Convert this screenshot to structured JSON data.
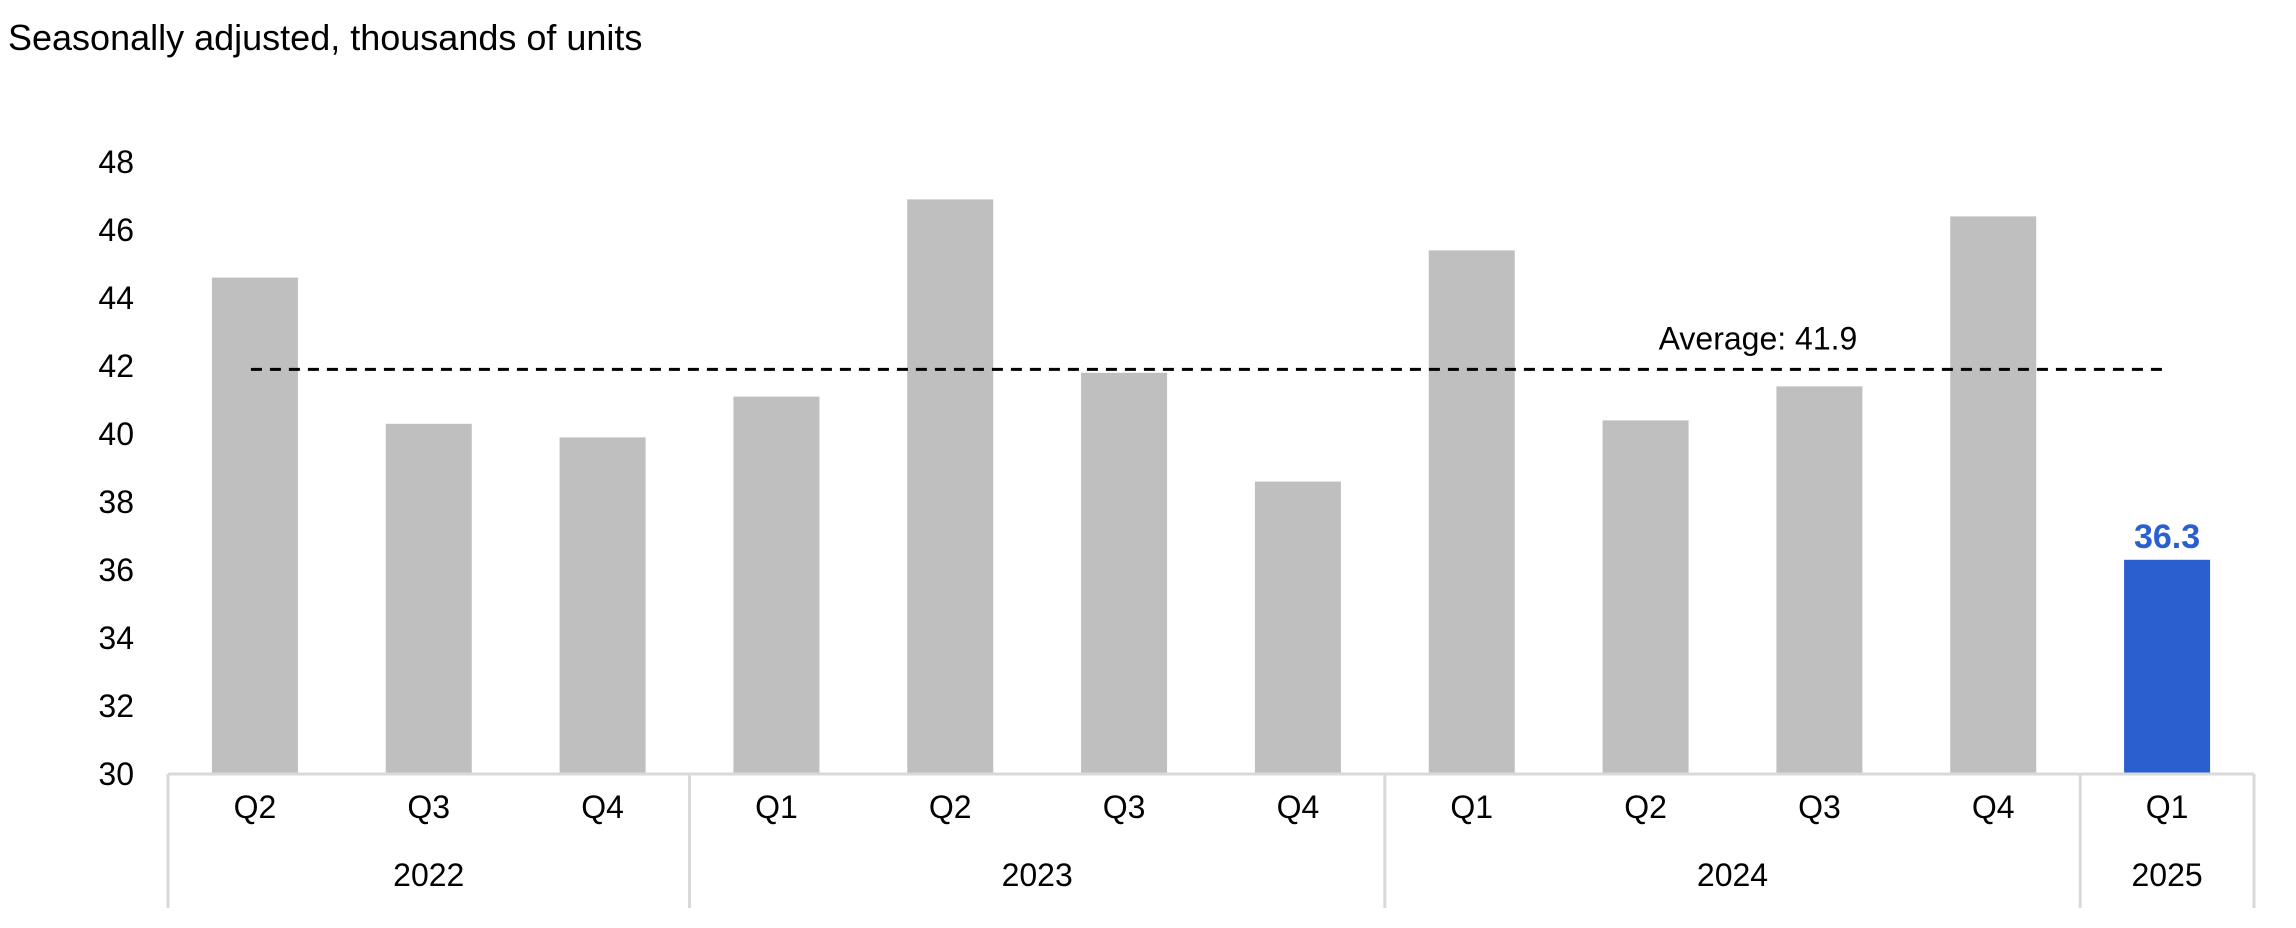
{
  "subtitle": "Seasonally adjusted, thousands of units",
  "chart_data": {
    "type": "bar",
    "title": "",
    "subtitle": "Seasonally adjusted, thousands of units",
    "xlabel": "",
    "ylabel": "",
    "ylim": [
      30,
      48
    ],
    "yticks": [
      30,
      32,
      34,
      36,
      38,
      40,
      42,
      44,
      46,
      48
    ],
    "grid": false,
    "categories": [
      "Q2",
      "Q3",
      "Q4",
      "Q1",
      "Q2",
      "Q3",
      "Q4",
      "Q1",
      "Q2",
      "Q3",
      "Q4",
      "Q1"
    ],
    "year_groups": [
      {
        "label": "2022",
        "count": 3
      },
      {
        "label": "2023",
        "count": 4
      },
      {
        "label": "2024",
        "count": 4
      },
      {
        "label": "2025",
        "count": 1
      }
    ],
    "values": [
      44.6,
      40.3,
      39.9,
      41.1,
      46.9,
      41.8,
      38.6,
      45.4,
      40.4,
      41.4,
      46.4,
      36.3
    ],
    "bar_color": "#bfbfbf",
    "highlight_color": "#2b5fcf",
    "highlight_index": 11,
    "highlight_label": "36.3",
    "reference_line": {
      "value": 41.9,
      "label": "Average:  41.9",
      "style": "dashed",
      "color": "#000000"
    },
    "axis_color": "#d9d9d9"
  }
}
